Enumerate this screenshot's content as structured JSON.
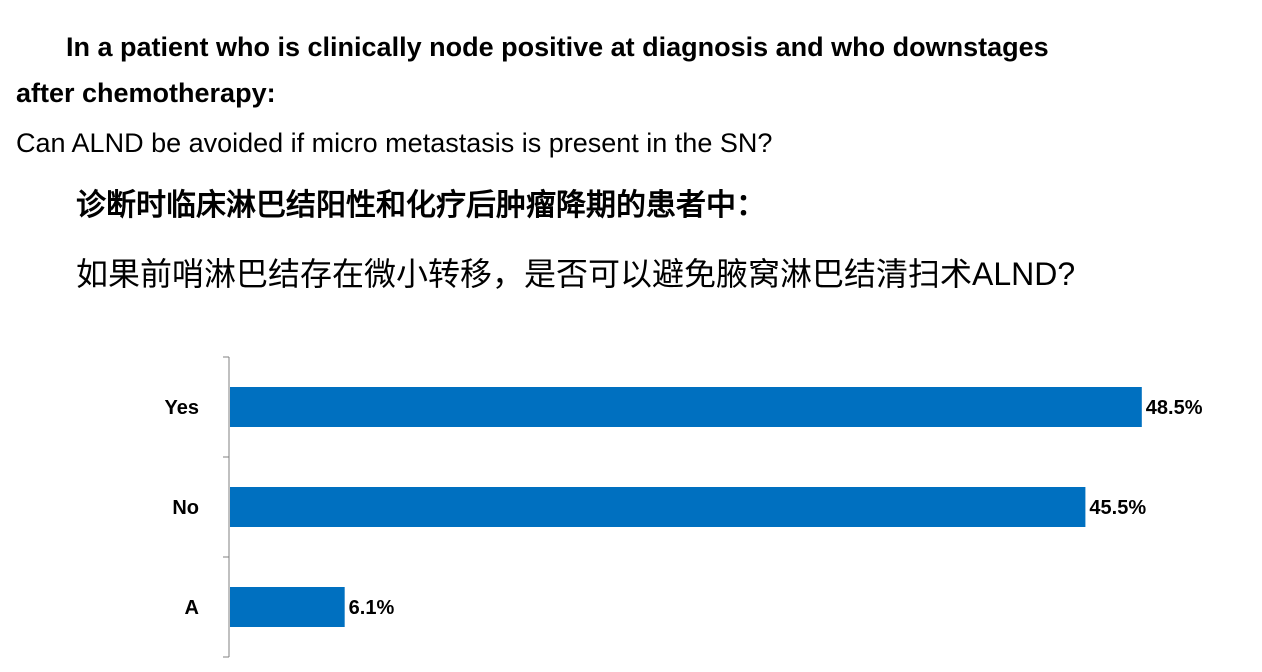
{
  "question": {
    "line1": "In a patient who is clinically node positive at diagnosis and who downstages",
    "line2": "after chemotherapy:",
    "subquestion": "Can ALND be avoided if micro metastasis is present in the SN?",
    "zh_line1": "诊断时临床淋巴结阳性和化疗后肿瘤降期的患者中：",
    "zh_line2": "如果前哨淋巴结存在微小转移，是否可以避免腋窝淋巴结清扫术ALND?"
  },
  "colors": {
    "bar": "#0070C0",
    "axis": "#808080",
    "text": "#000000"
  },
  "chart_data": {
    "type": "bar",
    "orientation": "horizontal",
    "categories": [
      "Yes",
      "No",
      "A"
    ],
    "values": [
      48.5,
      45.5,
      6.1
    ],
    "value_labels": [
      "48.5%",
      "45.5%",
      "6.1%"
    ],
    "unit": "%",
    "xlim": [
      0,
      50
    ],
    "grid": false,
    "legend": "none",
    "title": "",
    "xlabel": "",
    "ylabel": ""
  }
}
